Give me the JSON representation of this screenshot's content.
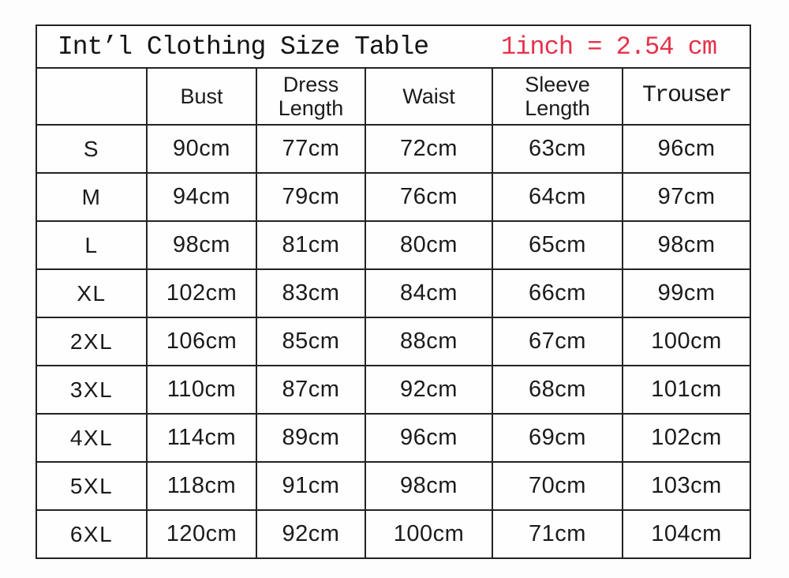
{
  "table": {
    "title": "Int’l Clothing Size Table",
    "conversion_note": "1inch = 2.54 cm",
    "note_color": "#e6314b",
    "border_color": "#232323",
    "unit": "cm"
  },
  "chart_data": {
    "type": "table",
    "title": "Int’l Clothing Size Table",
    "note": "1inch = 2.54 cm",
    "columns": [
      "",
      "Bust",
      "Dress Length",
      "Waist",
      "Sleeve Length",
      "Trouser"
    ],
    "rows": [
      [
        "S",
        "90cm",
        "77cm",
        "72cm",
        "63cm",
        "96cm"
      ],
      [
        "M",
        "94cm",
        "79cm",
        "76cm",
        "64cm",
        "97cm"
      ],
      [
        "L",
        "98cm",
        "81cm",
        "80cm",
        "65cm",
        "98cm"
      ],
      [
        "XL",
        "102cm",
        "83cm",
        "84cm",
        "66cm",
        "99cm"
      ],
      [
        "2XL",
        "106cm",
        "85cm",
        "88cm",
        "67cm",
        "100cm"
      ],
      [
        "3XL",
        "110cm",
        "87cm",
        "92cm",
        "68cm",
        "101cm"
      ],
      [
        "4XL",
        "114cm",
        "89cm",
        "96cm",
        "69cm",
        "102cm"
      ],
      [
        "5XL",
        "118cm",
        "91cm",
        "98cm",
        "70cm",
        "103cm"
      ],
      [
        "6XL",
        "120cm",
        "92cm",
        "100cm",
        "71cm",
        "104cm"
      ]
    ]
  }
}
